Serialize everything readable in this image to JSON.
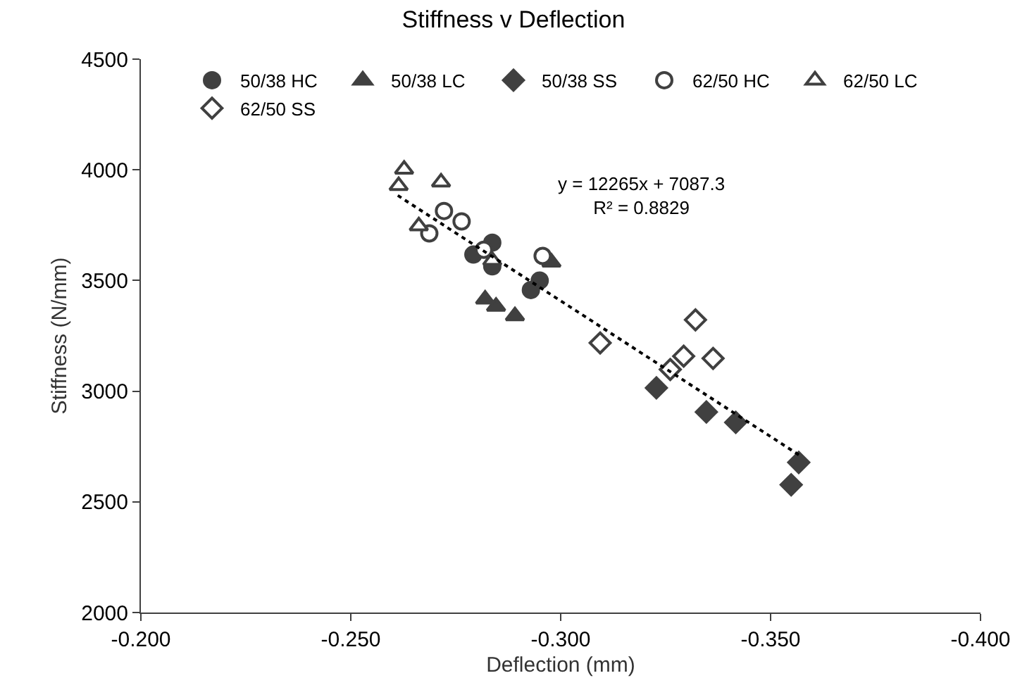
{
  "chart_data": {
    "type": "scatter",
    "title": "Stiffness v Deflection",
    "xlabel": "Deflection (mm)",
    "ylabel": "Stiffness (N/mm)",
    "xlim": [
      -0.2,
      -0.4
    ],
    "xticks": [
      {
        "value": -0.2,
        "label": "-0.200"
      },
      {
        "value": -0.25,
        "label": "-0.250"
      },
      {
        "value": -0.3,
        "label": "-0.300"
      },
      {
        "value": -0.35,
        "label": "-0.350"
      },
      {
        "value": -0.4,
        "label": "-0.400"
      }
    ],
    "ylim": [
      2000,
      4500
    ],
    "yticks": [
      2000,
      2500,
      3000,
      3500,
      4000,
      4500
    ],
    "legend": "top",
    "annotations": [
      "y = 12265x + 7087.3",
      "R² = 0.8829"
    ],
    "series": [
      {
        "name": "50/38 HC",
        "color": "#404040",
        "marker": "circle",
        "x": [
          -0.2837,
          -0.2792,
          -0.2837,
          -0.295,
          -0.2929
        ],
        "values": [
          3671,
          3617,
          3564,
          3500,
          3457
        ]
      },
      {
        "name": "50/38 LC",
        "color": "#404040",
        "marker": "triangle",
        "x": [
          -0.282,
          -0.2846,
          -0.2891,
          -0.2978
        ],
        "values": [
          3415,
          3383,
          3340,
          3582
        ]
      },
      {
        "name": "50/38 SS",
        "color": "#404040",
        "marker": "diamond",
        "x": [
          -0.3228,
          -0.3347,
          -0.3417,
          -0.3567,
          -0.3549
        ],
        "values": [
          3015,
          2906,
          2859,
          2678,
          2577
        ]
      },
      {
        "name": "62/50 HC",
        "color": "#404040",
        "marker": "circle-open",
        "x": [
          -0.2722,
          -0.2764,
          -0.2687,
          -0.2957,
          -0.2817
        ],
        "values": [
          3814,
          3767,
          3713,
          3611,
          3639
        ]
      },
      {
        "name": "62/50 LC",
        "color": "#404040",
        "marker": "triangle-open",
        "x": [
          -0.2627,
          -0.2614,
          -0.2715,
          -0.2662,
          -0.2837
        ],
        "values": [
          4002,
          3928,
          3944,
          3746,
          3590
        ]
      },
      {
        "name": "62/50 SS",
        "color": "#404040",
        "marker": "diamond-open",
        "x": [
          -0.3094,
          -0.3321,
          -0.3293,
          -0.3363,
          -0.3261
        ],
        "values": [
          3218,
          3322,
          3158,
          3148,
          3098
        ]
      },
      {
        "type": "line",
        "color": "#000000",
        "line_style": "dotted",
        "marker": "none",
        "x": [
          -0.2612,
          -0.357
        ],
        "values": [
          3884,
          2709
        ]
      }
    ]
  }
}
